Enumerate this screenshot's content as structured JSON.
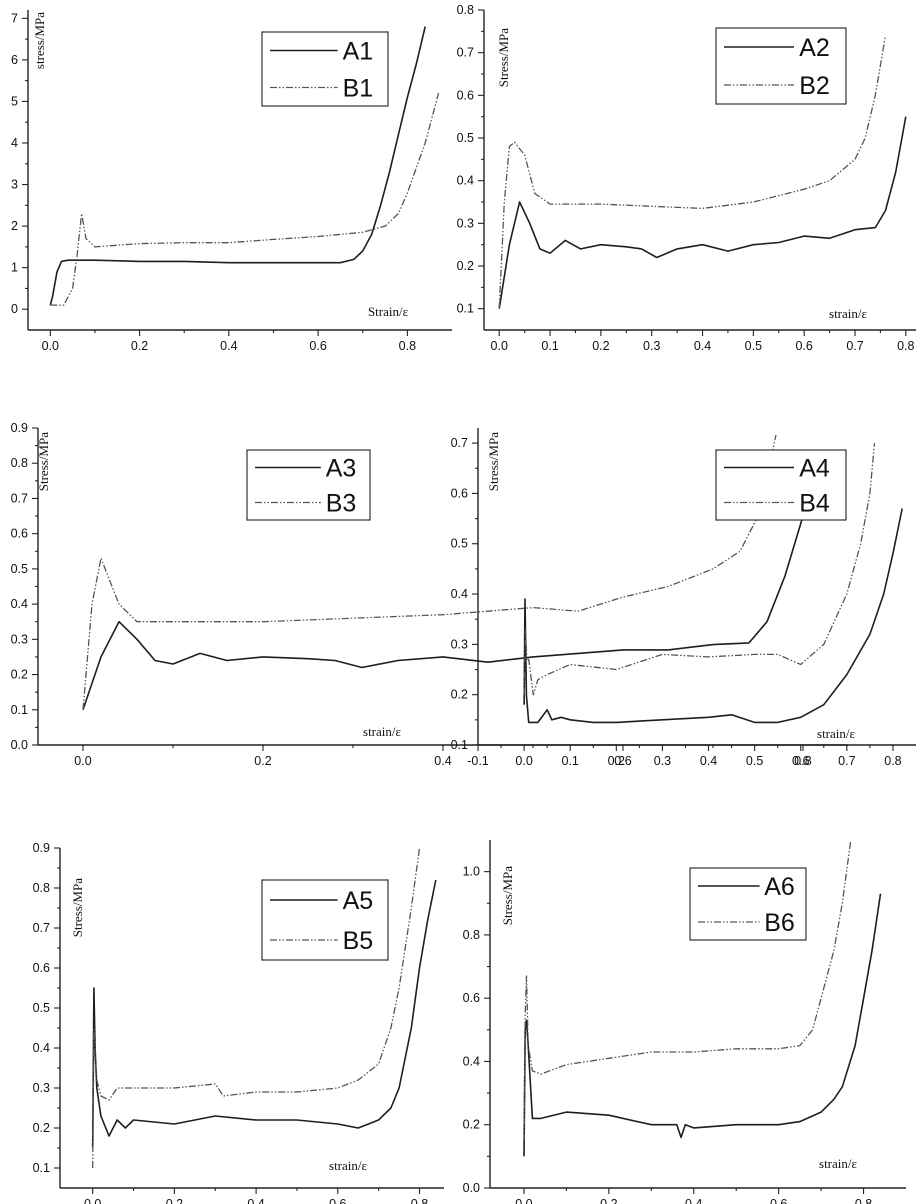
{
  "chart_data": [
    {
      "type": "line",
      "panel": 1,
      "xlabel": "Strain/ε",
      "ylabel": "stress/MPa",
      "xlim": [
        -0.05,
        0.9
      ],
      "ylim": [
        -0.5,
        7.2
      ],
      "xticks": [
        0.0,
        0.2,
        0.4,
        0.6,
        0.8
      ],
      "xtick_labels": [
        "0.0",
        "0.2",
        "0.4",
        "0.6",
        "0.8"
      ],
      "yticks": [
        0,
        1,
        2,
        3,
        4,
        5,
        6,
        7
      ],
      "ytick_labels": [
        "0",
        "1",
        "2",
        "3",
        "4",
        "5",
        "6",
        "7"
      ],
      "legend_position": "top-right",
      "series": [
        {
          "name": "A1",
          "style": "solid",
          "x": [
            0.0,
            0.005,
            0.015,
            0.025,
            0.04,
            0.1,
            0.2,
            0.3,
            0.4,
            0.5,
            0.6,
            0.65,
            0.68,
            0.7,
            0.72,
            0.74,
            0.76,
            0.78,
            0.8,
            0.82,
            0.84
          ],
          "y": [
            0.1,
            0.3,
            0.9,
            1.15,
            1.18,
            1.18,
            1.15,
            1.15,
            1.12,
            1.12,
            1.12,
            1.12,
            1.2,
            1.4,
            1.8,
            2.5,
            3.3,
            4.2,
            5.1,
            5.9,
            6.8
          ]
        },
        {
          "name": "B1",
          "style": "dash-dot-dot",
          "x": [
            0.0,
            0.03,
            0.05,
            0.06,
            0.07,
            0.08,
            0.1,
            0.2,
            0.3,
            0.4,
            0.5,
            0.6,
            0.7,
            0.75,
            0.78,
            0.8,
            0.82,
            0.84,
            0.86,
            0.87
          ],
          "y": [
            0.1,
            0.1,
            0.5,
            1.3,
            2.3,
            1.7,
            1.5,
            1.58,
            1.6,
            1.6,
            1.68,
            1.75,
            1.85,
            2.0,
            2.3,
            2.8,
            3.4,
            4.0,
            4.8,
            5.2
          ]
        }
      ]
    },
    {
      "type": "line",
      "panel": 2,
      "xlabel": "strain/ε",
      "ylabel": "Stress/MPa",
      "xlim": [
        -0.03,
        0.82
      ],
      "ylim": [
        0.05,
        0.8
      ],
      "xticks": [
        0.0,
        0.1,
        0.2,
        0.3,
        0.4,
        0.5,
        0.6,
        0.7,
        0.8
      ],
      "xtick_labels": [
        "0.0",
        "0.1",
        "0.2",
        "0.3",
        "0.4",
        "0.5",
        "0.6",
        "0.7",
        "0.8"
      ],
      "yticks": [
        0.1,
        0.2,
        0.3,
        0.4,
        0.5,
        0.6,
        0.7,
        0.8
      ],
      "ytick_labels": [
        "0.1",
        "0.2",
        "0.3",
        "0.4",
        "0.5",
        "0.6",
        "0.7",
        "0.8"
      ],
      "legend_position": "top-right",
      "series": [
        {
          "name": "A2",
          "style": "solid",
          "x": [
            0.0,
            0.02,
            0.04,
            0.06,
            0.08,
            0.1,
            0.13,
            0.16,
            0.2,
            0.25,
            0.28,
            0.31,
            0.35,
            0.4,
            0.45,
            0.5,
            0.55,
            0.6,
            0.65,
            0.7,
            0.74,
            0.76,
            0.78,
            0.8
          ],
          "y": [
            0.1,
            0.25,
            0.35,
            0.3,
            0.24,
            0.23,
            0.26,
            0.24,
            0.25,
            0.245,
            0.24,
            0.22,
            0.24,
            0.25,
            0.235,
            0.25,
            0.255,
            0.27,
            0.265,
            0.285,
            0.29,
            0.33,
            0.42,
            0.55
          ]
        },
        {
          "name": "B2",
          "style": "dash-dot-dot",
          "x": [
            0.0,
            0.01,
            0.02,
            0.03,
            0.05,
            0.07,
            0.1,
            0.2,
            0.3,
            0.4,
            0.5,
            0.6,
            0.65,
            0.7,
            0.72,
            0.74,
            0.76
          ],
          "y": [
            0.1,
            0.35,
            0.48,
            0.49,
            0.46,
            0.37,
            0.345,
            0.345,
            0.34,
            0.335,
            0.35,
            0.38,
            0.4,
            0.45,
            0.5,
            0.6,
            0.74
          ]
        }
      ]
    },
    {
      "type": "line",
      "panel": 3,
      "xlabel": "strain/ε",
      "ylabel": "Stress/MPa",
      "xlim": [
        -0.05,
        0.85
      ],
      "ylim": [
        0.0,
        0.9
      ],
      "xticks": [
        0.0,
        0.2,
        0.4,
        0.6,
        0.8
      ],
      "xtick_labels": [
        "0.0",
        "0.2",
        "0.4",
        "0.6",
        "0.8"
      ],
      "yticks": [
        0.0,
        0.1,
        0.2,
        0.3,
        0.4,
        0.5,
        0.6,
        0.7,
        0.8,
        0.9
      ],
      "ytick_labels": [
        "0.0",
        "0.1",
        "0.2",
        "0.3",
        "0.4",
        "0.5",
        "0.6",
        "0.7",
        "0.8",
        "0.9"
      ],
      "legend_position": "top-right",
      "series": [
        {
          "name": "A3",
          "style": "solid",
          "x": [
            0.0,
            0.02,
            0.04,
            0.06,
            0.08,
            0.1,
            0.13,
            0.16,
            0.2,
            0.25,
            0.28,
            0.31,
            0.35,
            0.4,
            0.45,
            0.5,
            0.55,
            0.6,
            0.65,
            0.7,
            0.74,
            0.76,
            0.78,
            0.8,
            0.82
          ],
          "y": [
            0.1,
            0.25,
            0.35,
            0.3,
            0.24,
            0.23,
            0.26,
            0.24,
            0.25,
            0.245,
            0.24,
            0.22,
            0.24,
            0.25,
            0.235,
            0.25,
            0.26,
            0.27,
            0.27,
            0.285,
            0.29,
            0.35,
            0.48,
            0.65,
            0.82
          ]
        },
        {
          "name": "B3",
          "style": "dash-dot-dot",
          "x": [
            0.0,
            0.01,
            0.02,
            0.04,
            0.06,
            0.1,
            0.2,
            0.3,
            0.4,
            0.5,
            0.55,
            0.6,
            0.65,
            0.7,
            0.73,
            0.75,
            0.77
          ],
          "y": [
            0.1,
            0.4,
            0.53,
            0.4,
            0.35,
            0.35,
            0.35,
            0.36,
            0.37,
            0.39,
            0.38,
            0.42,
            0.45,
            0.5,
            0.55,
            0.65,
            0.88
          ]
        }
      ]
    },
    {
      "type": "line",
      "panel": 4,
      "xlabel": "strain/ε",
      "ylabel": "Stress/MPa",
      "xlim": [
        -0.1,
        0.85
      ],
      "ylim": [
        0.1,
        0.73
      ],
      "xticks": [
        -0.1,
        0.0,
        0.1,
        0.2,
        0.3,
        0.4,
        0.5,
        0.6,
        0.7,
        0.8
      ],
      "xtick_labels": [
        "-0.1",
        "0.0",
        "0.1",
        "0.2",
        "0.3",
        "0.4",
        "0.5",
        "0.6",
        "0.7",
        "0.8"
      ],
      "yticks": [
        0.1,
        0.2,
        0.3,
        0.4,
        0.5,
        0.6,
        0.7
      ],
      "ytick_labels": [
        "0.1",
        "0.2",
        "0.3",
        "0.4",
        "0.5",
        "0.6",
        "0.7"
      ],
      "legend_position": "top-right",
      "series": [
        {
          "name": "A4",
          "style": "solid",
          "x": [
            0.0,
            0.002,
            0.005,
            0.01,
            0.03,
            0.05,
            0.06,
            0.08,
            0.1,
            0.15,
            0.2,
            0.3,
            0.4,
            0.45,
            0.5,
            0.55,
            0.6,
            0.65,
            0.7,
            0.75,
            0.78,
            0.8,
            0.82
          ],
          "y": [
            0.18,
            0.39,
            0.2,
            0.145,
            0.145,
            0.17,
            0.15,
            0.155,
            0.15,
            0.145,
            0.145,
            0.15,
            0.155,
            0.16,
            0.145,
            0.145,
            0.155,
            0.18,
            0.24,
            0.32,
            0.4,
            0.48,
            0.57
          ]
        },
        {
          "name": "B4",
          "style": "dash-dot-dot",
          "x": [
            0.0,
            0.003,
            0.006,
            0.01,
            0.02,
            0.03,
            0.05,
            0.1,
            0.2,
            0.3,
            0.4,
            0.5,
            0.55,
            0.6,
            0.65,
            0.7,
            0.73,
            0.75,
            0.76
          ],
          "y": [
            0.2,
            0.33,
            0.27,
            0.27,
            0.2,
            0.23,
            0.24,
            0.26,
            0.25,
            0.28,
            0.275,
            0.28,
            0.28,
            0.26,
            0.3,
            0.4,
            0.5,
            0.6,
            0.7
          ]
        }
      ]
    },
    {
      "type": "line",
      "panel": 5,
      "xlabel": "strain/ε",
      "ylabel": "Stress/MPa",
      "xlim": [
        -0.08,
        0.86
      ],
      "ylim": [
        0.05,
        0.9
      ],
      "xticks": [
        0.0,
        0.2,
        0.4,
        0.6,
        0.8
      ],
      "xtick_labels": [
        "0.0",
        "0.2",
        "0.4",
        "0.6",
        "0.8"
      ],
      "yticks": [
        0.1,
        0.2,
        0.3,
        0.4,
        0.5,
        0.6,
        0.7,
        0.8,
        0.9
      ],
      "ytick_labels": [
        "0.1",
        "0.2",
        "0.3",
        "0.4",
        "0.5",
        "0.6",
        "0.7",
        "0.8",
        "0.9"
      ],
      "legend_position": "top-right",
      "series": [
        {
          "name": "A5",
          "style": "solid",
          "x": [
            0.0,
            0.003,
            0.006,
            0.01,
            0.02,
            0.04,
            0.06,
            0.08,
            0.1,
            0.2,
            0.3,
            0.4,
            0.5,
            0.6,
            0.65,
            0.7,
            0.73,
            0.75,
            0.78,
            0.8,
            0.82,
            0.84
          ],
          "y": [
            0.15,
            0.55,
            0.4,
            0.3,
            0.23,
            0.18,
            0.22,
            0.2,
            0.22,
            0.21,
            0.23,
            0.22,
            0.22,
            0.21,
            0.2,
            0.22,
            0.25,
            0.3,
            0.45,
            0.6,
            0.72,
            0.82
          ]
        },
        {
          "name": "B5",
          "style": "dash-dot-dot",
          "x": [
            0.0,
            0.003,
            0.006,
            0.01,
            0.02,
            0.04,
            0.06,
            0.1,
            0.2,
            0.3,
            0.32,
            0.4,
            0.5,
            0.6,
            0.65,
            0.7,
            0.73,
            0.75,
            0.78,
            0.8
          ],
          "y": [
            0.1,
            0.45,
            0.38,
            0.32,
            0.28,
            0.27,
            0.3,
            0.3,
            0.3,
            0.31,
            0.28,
            0.29,
            0.29,
            0.3,
            0.32,
            0.36,
            0.45,
            0.55,
            0.75,
            0.9
          ]
        }
      ]
    },
    {
      "type": "line",
      "panel": 6,
      "xlabel": "strain/ε",
      "ylabel": "Stress/MPa",
      "xlim": [
        -0.08,
        0.9
      ],
      "ylim": [
        0.0,
        1.1
      ],
      "xticks": [
        0.0,
        0.2,
        0.4,
        0.6,
        0.8
      ],
      "xtick_labels": [
        "0.0",
        "0.2",
        "0.4",
        "0.6",
        "0.8"
      ],
      "yticks": [
        0.0,
        0.2,
        0.4,
        0.6,
        0.8,
        1.0
      ],
      "ytick_labels": [
        "0.0",
        "0.2",
        "0.4",
        "0.6",
        "0.8",
        "1.0"
      ],
      "legend_position": "top-left",
      "series": [
        {
          "name": "A6",
          "style": "solid",
          "x": [
            0.0,
            0.003,
            0.006,
            0.01,
            0.02,
            0.04,
            0.1,
            0.2,
            0.3,
            0.36,
            0.37,
            0.38,
            0.4,
            0.5,
            0.6,
            0.65,
            0.7,
            0.73,
            0.75,
            0.78,
            0.8,
            0.82,
            0.84
          ],
          "y": [
            0.1,
            0.5,
            0.53,
            0.45,
            0.22,
            0.22,
            0.24,
            0.23,
            0.2,
            0.2,
            0.16,
            0.2,
            0.19,
            0.2,
            0.2,
            0.21,
            0.24,
            0.28,
            0.32,
            0.45,
            0.6,
            0.75,
            0.93
          ]
        },
        {
          "name": "B6",
          "style": "dash-dot-dot",
          "x": [
            0.0,
            0.003,
            0.006,
            0.01,
            0.02,
            0.04,
            0.1,
            0.2,
            0.3,
            0.4,
            0.5,
            0.6,
            0.65,
            0.68,
            0.7,
            0.73,
            0.75,
            0.77
          ],
          "y": [
            0.15,
            0.55,
            0.67,
            0.45,
            0.37,
            0.36,
            0.39,
            0.41,
            0.43,
            0.43,
            0.44,
            0.44,
            0.45,
            0.5,
            0.6,
            0.75,
            0.9,
            1.1
          ]
        }
      ]
    }
  ]
}
